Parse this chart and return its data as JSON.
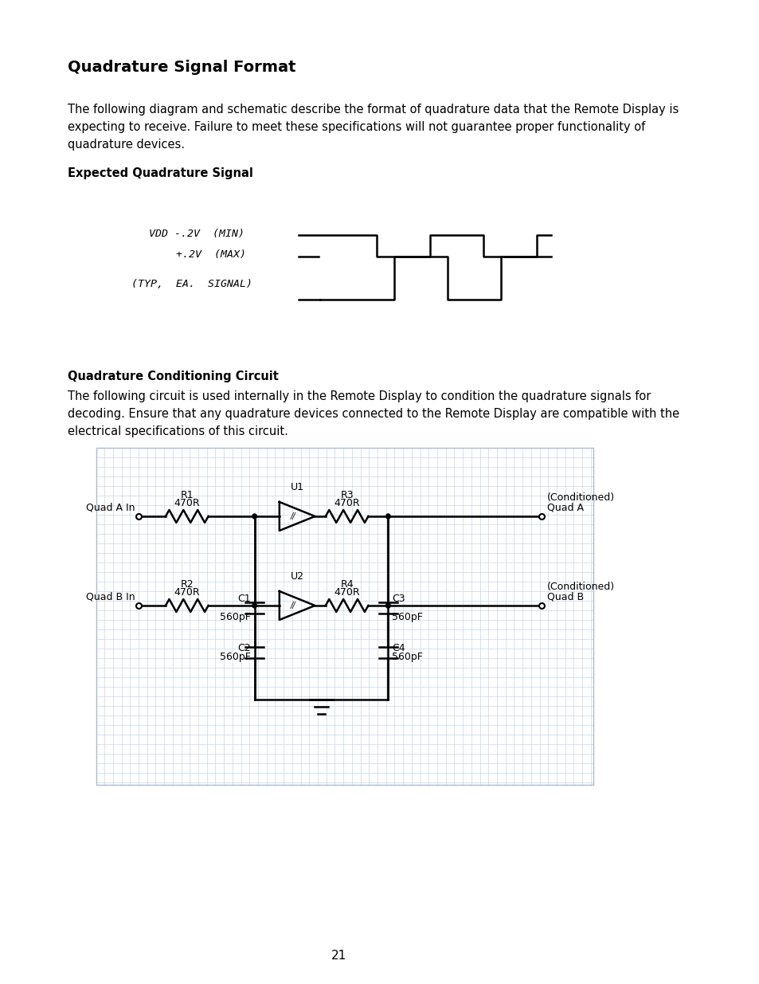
{
  "title": "Quadrature Signal Format",
  "bg_color": "#ffffff",
  "text_color": "#000000",
  "page_number": "21",
  "body_text1": "The following diagram and schematic describe the format of quadrature data that the Remote Display is\nexpecting to receive. Failure to meet these specifications will not guarantee proper functionality of\nquadrature devices.",
  "subtitle1": "Expected Quadrature Signal",
  "label_vdd": "VDD -.2V  (MIN)",
  "label_p2v": "+.2V  (MAX)",
  "label_typ": "(TYP,  EA.  SIGNAL)",
  "subtitle2": "Quadrature Conditioning Circuit",
  "body_text2": "The following circuit is used internally in the Remote Display to condition the quadrature signals for\ndecoding. Ensure that any quadrature devices connected to the Remote Display are compatible with the\nelectrical specifications of this circuit."
}
